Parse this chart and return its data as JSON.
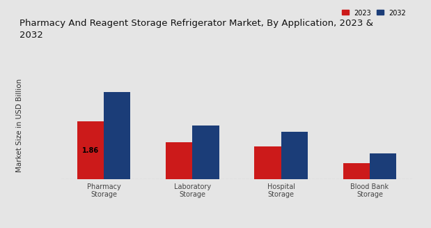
{
  "title": "Pharmacy And Reagent Storage Refrigerator Market, By Application, 2023 &\n2032",
  "ylabel": "Market Size in USD Billion",
  "categories": [
    "Pharmacy\nStorage",
    "Laboratory\nStorage",
    "Hospital\nStorage",
    "Blood Bank\nStorage"
  ],
  "values_2023": [
    1.86,
    1.2,
    1.05,
    0.52
  ],
  "values_2032": [
    2.8,
    1.72,
    1.52,
    0.82
  ],
  "color_2023": "#cc1a1a",
  "color_2032": "#1b3d78",
  "annotation_text": "1.86",
  "annotation_bar": 0,
  "background_color": "#e5e5e5",
  "legend_labels": [
    "2023",
    "2032"
  ],
  "bar_width": 0.3,
  "ylim": [
    0,
    3.5
  ],
  "title_fontsize": 9.5,
  "axis_fontsize": 7.5,
  "tick_fontsize": 7,
  "red_bottom_color": "#cc1a1a"
}
